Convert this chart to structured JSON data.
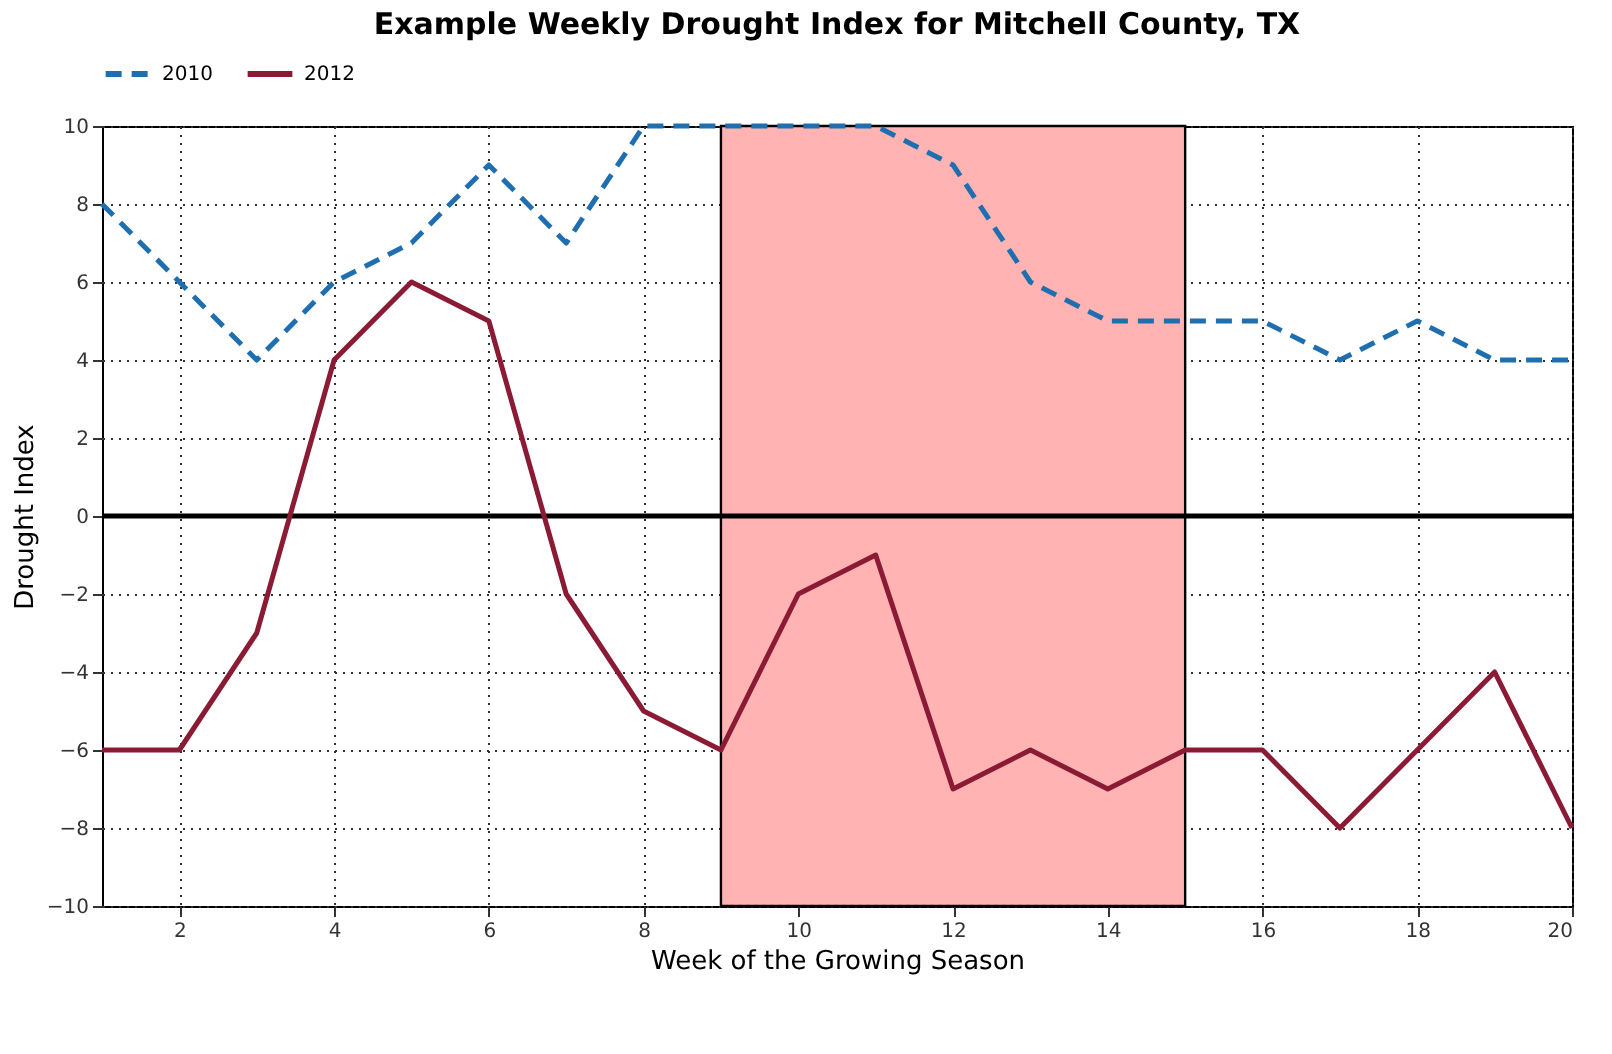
{
  "chart_data": {
    "type": "line",
    "title": "Example Weekly Drought Index for Mitchell County, TX",
    "xlabel": "Week of the Growing Season",
    "ylabel": "Drought Index",
    "x": [
      1,
      2,
      3,
      4,
      5,
      6,
      7,
      8,
      9,
      10,
      11,
      12,
      13,
      14,
      15,
      16,
      17,
      18,
      19,
      20
    ],
    "series": [
      {
        "name": "2010",
        "color": "#1f6fb0",
        "line_style": "dashed",
        "values": [
          8,
          6,
          4,
          6,
          7,
          9,
          7,
          10,
          10,
          10,
          10,
          9,
          6,
          5,
          5,
          5,
          4,
          5,
          4,
          4
        ]
      },
      {
        "name": "2012",
        "color": "#8b1a35",
        "line_style": "solid",
        "values": [
          -6,
          -6,
          -3,
          4,
          6,
          5,
          -2,
          -5,
          -6,
          -2,
          -1,
          -7,
          -6,
          -7,
          -6,
          -6,
          -8,
          -6,
          -4,
          -8
        ]
      }
    ],
    "xlim": [
      1,
      20
    ],
    "xticks": [
      2,
      4,
      6,
      8,
      10,
      12,
      14,
      16,
      18,
      20
    ],
    "ylim": [
      -10,
      10
    ],
    "yticks": [
      -10,
      -8,
      -6,
      -4,
      -2,
      0,
      2,
      4,
      6,
      8,
      10
    ],
    "ref_lines": [
      {
        "axis": "y",
        "value": 0,
        "color": "#000000"
      }
    ],
    "bands": [
      {
        "axis": "x",
        "from": 9,
        "to": 15,
        "color": "#ffb3b3"
      }
    ],
    "grid": true,
    "legend": "top",
    "marker": "none"
  }
}
